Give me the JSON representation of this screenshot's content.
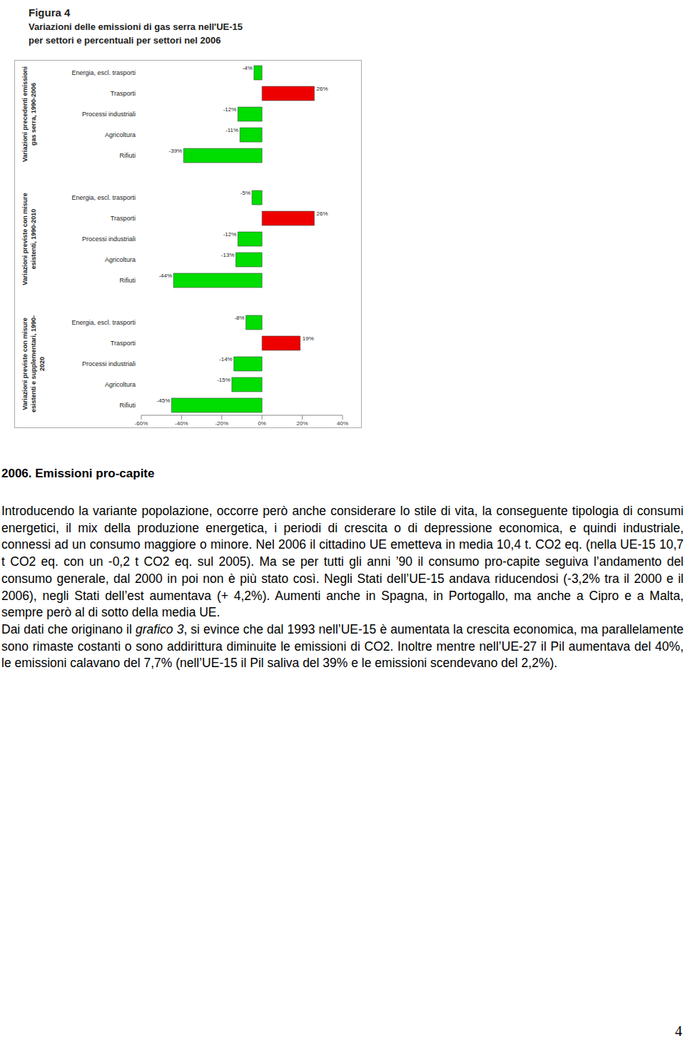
{
  "figure_title": [
    "Figura 4",
    "Variazioni delle emissioni di gas serra nell'UE-15",
    "per settori e percentuali per settori nel 2006"
  ],
  "chart_data": [
    {
      "type": "bar",
      "orientation": "horizontal",
      "title": "Variazioni precedenti emissioni gas serra, 1990-2006",
      "categories": [
        "Energia, escl. trasporti",
        "Trasporti",
        "Processi industriali",
        "Agricoltura",
        "Rifiuti"
      ],
      "values": [
        -4,
        26,
        -12,
        -11,
        -39
      ],
      "value_labels": [
        "-4%",
        "26%",
        "-12%",
        "-11%",
        "-39%"
      ],
      "colors": [
        "#00dd00",
        "#ee0000",
        "#00dd00",
        "#00dd00",
        "#00dd00"
      ],
      "data_labels": true,
      "tick_labels": "y",
      "xlim": [
        -60,
        40
      ],
      "xticks": [
        {
          "value": -60,
          "label": "-60%"
        },
        {
          "value": -40,
          "label": "-40%"
        },
        {
          "value": -20,
          "label": "-20%"
        },
        {
          "value": 0,
          "label": "0%"
        },
        {
          "value": 20,
          "label": "20%"
        },
        {
          "value": 40,
          "label": "40%"
        }
      ]
    },
    {
      "type": "bar",
      "orientation": "horizontal",
      "title": "Variazioni previste con misure esistenti, 1990-2010",
      "categories": [
        "Energia, escl. trasporti",
        "Trasporti",
        "Processi industriali",
        "Agricoltura",
        "Rifiuti"
      ],
      "values": [
        -5,
        26,
        -12,
        -13,
        -44
      ],
      "value_labels": [
        "-5%",
        "26%",
        "-12%",
        "-13%",
        "-44%"
      ],
      "colors": [
        "#00dd00",
        "#ee0000",
        "#00dd00",
        "#00dd00",
        "#00dd00"
      ],
      "data_labels": true,
      "tick_labels": "y",
      "xlim": [
        -60,
        40
      ],
      "xticks": [
        {
          "value": -60,
          "label": "-60%"
        },
        {
          "value": -40,
          "label": "-40%"
        },
        {
          "value": -20,
          "label": "-20%"
        },
        {
          "value": 0,
          "label": "0%"
        },
        {
          "value": 20,
          "label": "20%"
        },
        {
          "value": 40,
          "label": "40%"
        }
      ]
    },
    {
      "type": "bar",
      "orientation": "horizontal",
      "title": "Variazioni previste con misure esistenti e supplementari, 1990-2020",
      "categories": [
        "Energia, escl. trasporti",
        "Trasporti",
        "Processi industriali",
        "Agricoltura",
        "Rifiuti"
      ],
      "values": [
        -8,
        19,
        -14,
        -15,
        -45
      ],
      "value_labels": [
        "-8%",
        "19%",
        "-14%",
        "-15%",
        "-45%"
      ],
      "colors": [
        "#00dd00",
        "#ee0000",
        "#00dd00",
        "#00dd00",
        "#00dd00"
      ],
      "data_labels": true,
      "xlim": [
        -60,
        40
      ],
      "xticks": [
        {
          "value": -60,
          "label": "-60%"
        },
        {
          "value": -40,
          "label": "-40%"
        },
        {
          "value": -20,
          "label": "-20%"
        },
        {
          "value": 0,
          "label": "0%"
        },
        {
          "value": 20,
          "label": "20%"
        },
        {
          "value": 40,
          "label": "40%"
        }
      ]
    }
  ],
  "section_heading": "2006. Emissioni pro-capite",
  "paragraphs": [
    [
      "Introducendo la variante popolazione, occorre però anche considerare lo stile di vita, la conseguente tipologia di consumi energetici, il mix della produzione energetica, i periodi di crescita o di depressione economica, e quindi industriale, connessi ad un consumo maggiore o minore. Nel 2006 il cittadino UE emetteva in media 10,4 t. CO2 eq. (nella UE-15 10,7 t CO2 eq. con un -0,2 t CO2 eq. sul 2005). Ma se per tutti gli anni ’90 il consumo pro-capite seguiva l’andamento del consumo generale, dal 2000 in poi non è più stato così. Negli Stati dell’UE-15 andava riducendosi (-3,2% tra il 2000 e il 2006), negli Stati dell’est aumentava (+ 4,2%). Aumenti anche in Spagna, in Portogallo, ma anche a Cipro e a Malta, sempre però al di sotto della media UE."
    ],
    [
      "Dai dati che originano il ",
      {
        "italic": "grafico 3"
      },
      ", si evince che dal 1993 nell’UE-15 è aumentata la crescita economica, ma parallelamente sono rimaste costanti o sono addirittura diminuite le emissioni di CO2. Inoltre mentre nell’UE-27 il Pil aumentava del 40%, le emissioni calavano del 7,7% (nell’UE-15 il Pil saliva del 39% e le emissioni scendevano del 2,2%)."
    ]
  ],
  "page_number": 4
}
